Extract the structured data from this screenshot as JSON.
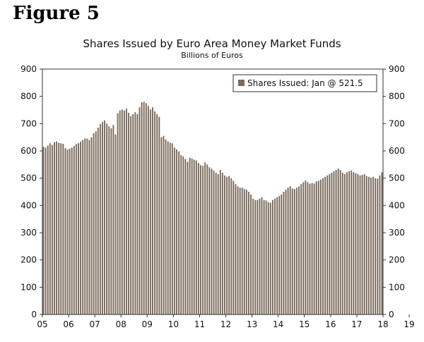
{
  "figure_label": "Figure 5",
  "chart_data": {
    "type": "bar",
    "title": "Shares Issued by Euro Area Money Market Funds",
    "subtitle": "Billions of Euros",
    "ylim": [
      0,
      900
    ],
    "y_ticks": [
      0,
      100,
      200,
      300,
      400,
      500,
      600,
      700,
      800,
      900
    ],
    "x_tick_labels": [
      "05",
      "06",
      "07",
      "08",
      "09",
      "10",
      "11",
      "12",
      "13",
      "14",
      "15",
      "16",
      "17",
      "18",
      "19"
    ],
    "x_start": "2005-01",
    "grid": false,
    "legend_position": "top-right",
    "bar_color": "#7a6a5c",
    "series": [
      {
        "name": "Shares Issued: Jan @ 521.5",
        "values": [
          615,
          612,
          620,
          628,
          622,
          632,
          635,
          630,
          628,
          626,
          610,
          605,
          608,
          612,
          618,
          625,
          628,
          634,
          640,
          646,
          645,
          640,
          650,
          665,
          672,
          685,
          698,
          706,
          712,
          700,
          690,
          683,
          695,
          660,
          738,
          748,
          752,
          748,
          755,
          740,
          728,
          735,
          742,
          735,
          760,
          778,
          780,
          775,
          765,
          752,
          760,
          745,
          735,
          725,
          650,
          655,
          642,
          635,
          630,
          628,
          612,
          605,
          598,
          585,
          580,
          570,
          560,
          575,
          572,
          568,
          565,
          555,
          548,
          545,
          558,
          550,
          540,
          535,
          528,
          520,
          515,
          530,
          520,
          510,
          505,
          508,
          500,
          490,
          478,
          470,
          465,
          465,
          460,
          458,
          450,
          440,
          425,
          420,
          420,
          425,
          430,
          420,
          418,
          412,
          410,
          420,
          425,
          430,
          435,
          440,
          450,
          458,
          465,
          470,
          462,
          460,
          465,
          470,
          478,
          485,
          492,
          485,
          480,
          482,
          480,
          488,
          490,
          495,
          500,
          505,
          510,
          515,
          520,
          525,
          530,
          535,
          530,
          520,
          515,
          522,
          525,
          528,
          522,
          518,
          515,
          510,
          512,
          515,
          508,
          505,
          502,
          505,
          500,
          498,
          510,
          521.5
        ]
      }
    ]
  }
}
